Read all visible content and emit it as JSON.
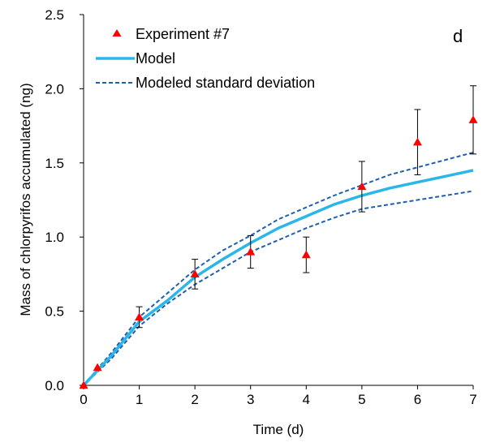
{
  "chart_data": {
    "type": "scatter",
    "panel_label": "d",
    "xlabel": "Time (d)",
    "ylabel": "Mass of chlorpyrifos accumulated (ng)",
    "xlim": [
      0,
      7
    ],
    "ylim": [
      0,
      2.5
    ],
    "x_ticks": [
      "0",
      "1",
      "2",
      "3",
      "4",
      "5",
      "6",
      "7"
    ],
    "y_ticks": [
      "0.0",
      "0.5",
      "1.0",
      "1.5",
      "2.0",
      "2.5"
    ],
    "legend_position": "top-left",
    "colors": {
      "experiment": "#ff0000",
      "model": "#29b6e8",
      "sd": "#1f5fae",
      "error_bar": "#000000"
    },
    "series": [
      {
        "name": "Experiment #7",
        "kind": "points_with_error",
        "points": [
          {
            "x": 0,
            "y": 0.0,
            "err": 0.0
          },
          {
            "x": 0.25,
            "y": 0.12,
            "err": 0.0
          },
          {
            "x": 1,
            "y": 0.46,
            "err": 0.07
          },
          {
            "x": 2,
            "y": 0.75,
            "err": 0.1
          },
          {
            "x": 3,
            "y": 0.9,
            "err": 0.11
          },
          {
            "x": 4,
            "y": 0.88,
            "err": 0.12
          },
          {
            "x": 5,
            "y": 1.34,
            "err": 0.17
          },
          {
            "x": 6,
            "y": 1.64,
            "err": 0.22
          },
          {
            "x": 7,
            "y": 1.79,
            "err": 0.23
          }
        ]
      },
      {
        "name": "Model",
        "kind": "line",
        "x": [
          0,
          0.25,
          0.5,
          1,
          1.5,
          2,
          2.5,
          3,
          3.5,
          4,
          4.5,
          5,
          5.5,
          6,
          6.5,
          7
        ],
        "y": [
          0,
          0.1,
          0.2,
          0.43,
          0.57,
          0.73,
          0.85,
          0.96,
          1.06,
          1.14,
          1.22,
          1.28,
          1.33,
          1.37,
          1.41,
          1.45
        ]
      },
      {
        "name": "Modeled standard deviation",
        "kind": "dashed_band",
        "x": [
          0,
          0.25,
          0.5,
          1,
          1.5,
          2,
          2.5,
          3,
          3.5,
          4,
          4.5,
          5,
          5.5,
          6,
          6.5,
          7
        ],
        "upper": [
          0,
          0.11,
          0.22,
          0.46,
          0.62,
          0.78,
          0.91,
          1.01,
          1.12,
          1.2,
          1.28,
          1.35,
          1.42,
          1.47,
          1.52,
          1.57
        ],
        "lower": [
          0,
          0.09,
          0.18,
          0.4,
          0.55,
          0.68,
          0.79,
          0.9,
          0.98,
          1.06,
          1.13,
          1.19,
          1.22,
          1.25,
          1.28,
          1.31
        ]
      }
    ]
  }
}
